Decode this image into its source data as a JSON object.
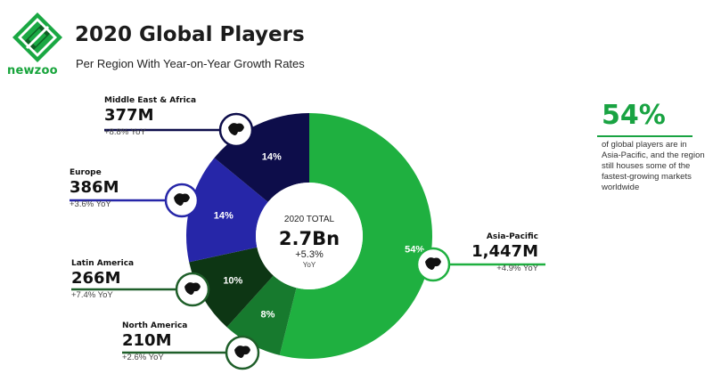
{
  "brand": {
    "name": "newzoo",
    "green": "#1aa843",
    "dark": "#1f5f2a"
  },
  "header": {
    "title": "2020 Global Players",
    "subtitle": "Per Region With Year-on-Year Growth Rates"
  },
  "center": {
    "label": "2020 TOTAL",
    "value": "2.7Bn",
    "growth": "+5.3%",
    "growth_unit": "YoY"
  },
  "regions": [
    {
      "name": "Middle East & Africa",
      "value": "377M",
      "growth": "+8.8% YoY"
    },
    {
      "name": "Europe",
      "value": "386M",
      "growth": "+3.6% YoY"
    },
    {
      "name": "Latin America",
      "value": "266M",
      "growth": "+7.4% YoY"
    },
    {
      "name": "North America",
      "value": "210M",
      "growth": "+2.6% YoY"
    },
    {
      "name": "Asia-Pacific",
      "value": "1,447M",
      "growth": "+4.9% YoY"
    }
  ],
  "highlight": {
    "value": "54%",
    "text": "of global players are in Asia-Pacific, and the region still houses some of the fastest-growing markets worldwide"
  },
  "chart_data": {
    "type": "pie",
    "categories": [
      "Asia-Pacific",
      "North America",
      "Latin America",
      "Europe",
      "Middle East & Africa"
    ],
    "values": [
      1447,
      210,
      266,
      386,
      377
    ],
    "percent_labels": [
      "54%",
      "8%",
      "10%",
      "14%",
      "14%"
    ],
    "colors": [
      "#1fb040",
      "#177a2e",
      "#0d3614",
      "#2626a8",
      "#0d0d4a"
    ],
    "icons": [
      "asia-pacific-map-icon",
      "north-america-map-icon",
      "latin-america-map-icon",
      "europe-map-icon",
      "middle-east-africa-map-icon"
    ],
    "title": "2020 Global Players",
    "total": "2.7Bn"
  }
}
